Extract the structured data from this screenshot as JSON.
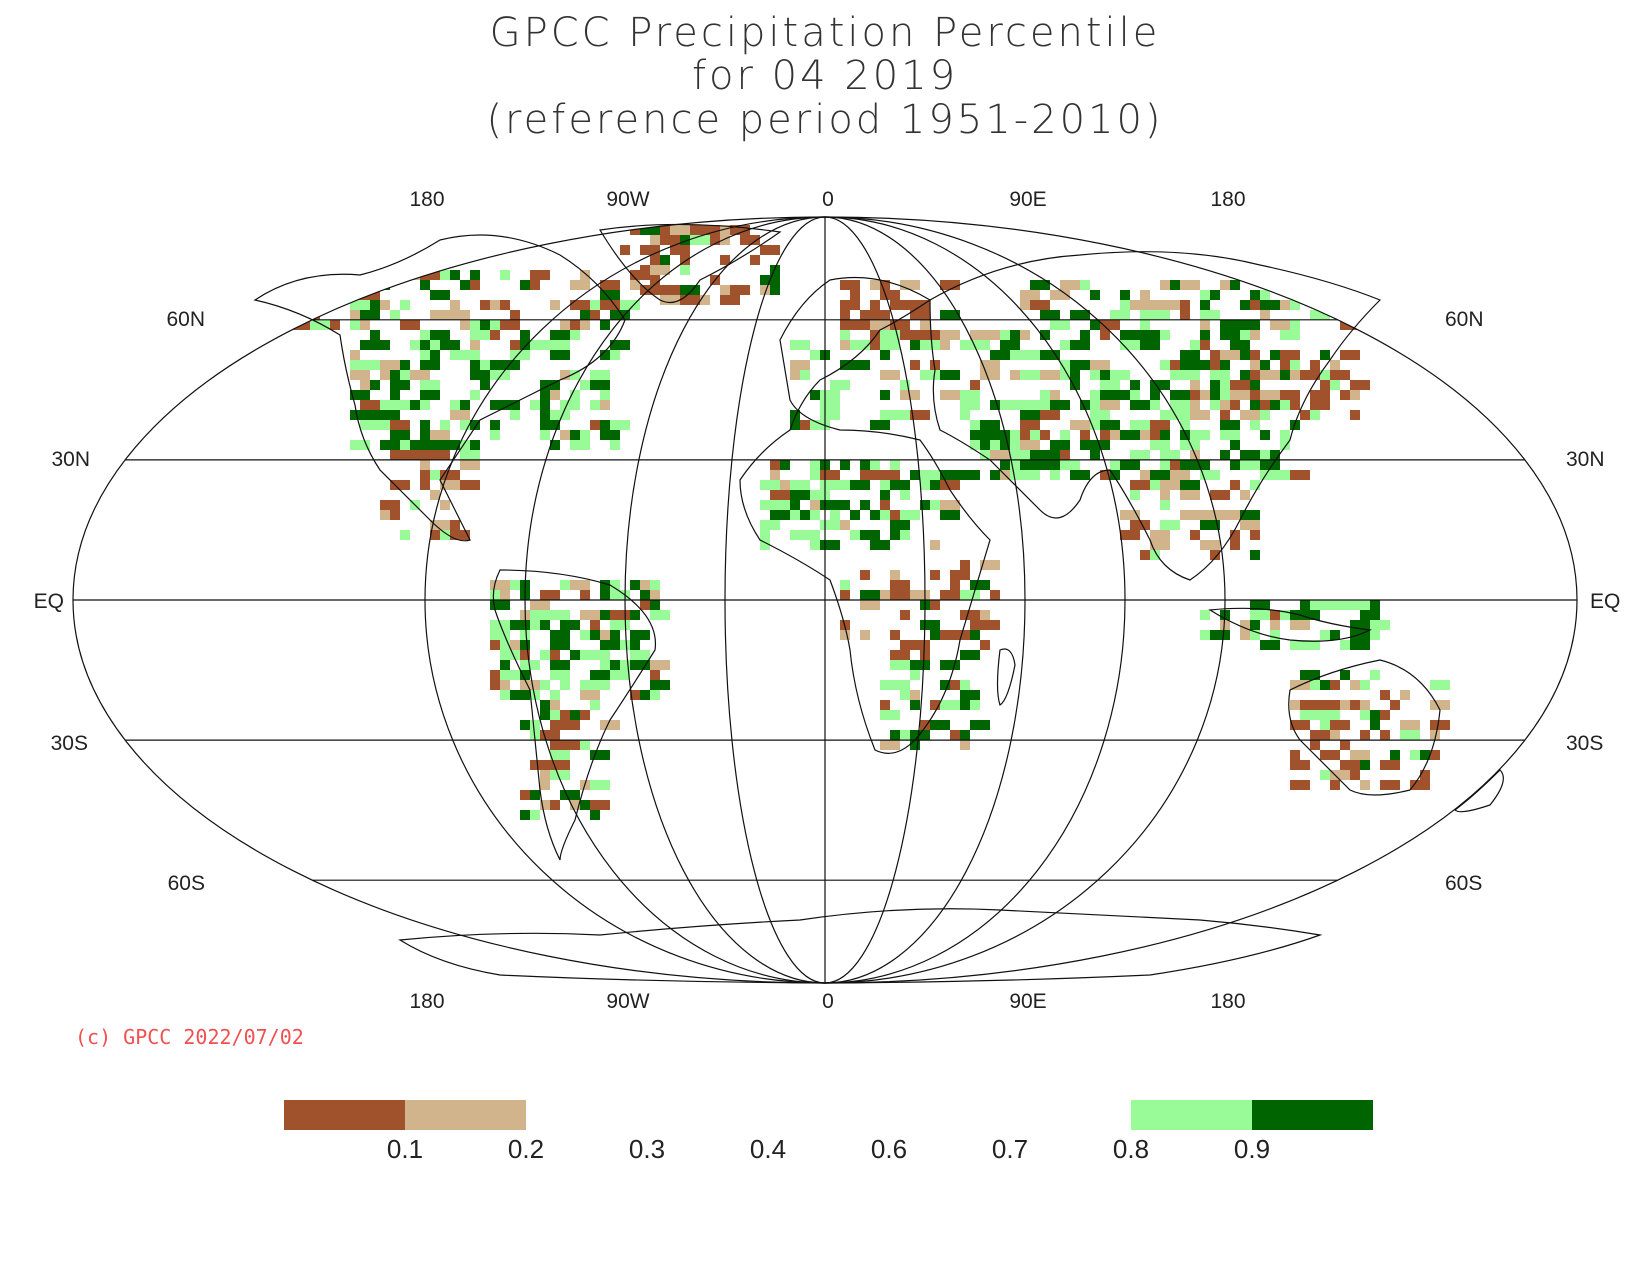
{
  "title": {
    "line1": "GPCC Precipitation Percentile",
    "line2": "for 04 2019",
    "line3": "(reference period 1951-2010)"
  },
  "copyright": "(c) GPCC 2022/07/02",
  "longitude_labels": [
    "180",
    "90W",
    "0",
    "90E",
    "180"
  ],
  "latitude_labels": [
    "60N",
    "30N",
    "EQ",
    "30S",
    "60S"
  ],
  "legend": {
    "colors": [
      "#a0522d",
      "#d2b48c",
      "#ffffff",
      "#ffffff",
      "#ffffff",
      "#ffffff",
      "#ffffff",
      "#98fb98",
      "#006400"
    ],
    "tick_labels": [
      "0.1",
      "0.2",
      "0.3",
      "0.4",
      "0.6",
      "0.7",
      "0.8",
      "0.9"
    ]
  },
  "category_colors": {
    "dry_extreme": "#a0522d",
    "dry": "#d2b48c",
    "wet": "#98fb98",
    "wet_extreme": "#006400"
  }
}
